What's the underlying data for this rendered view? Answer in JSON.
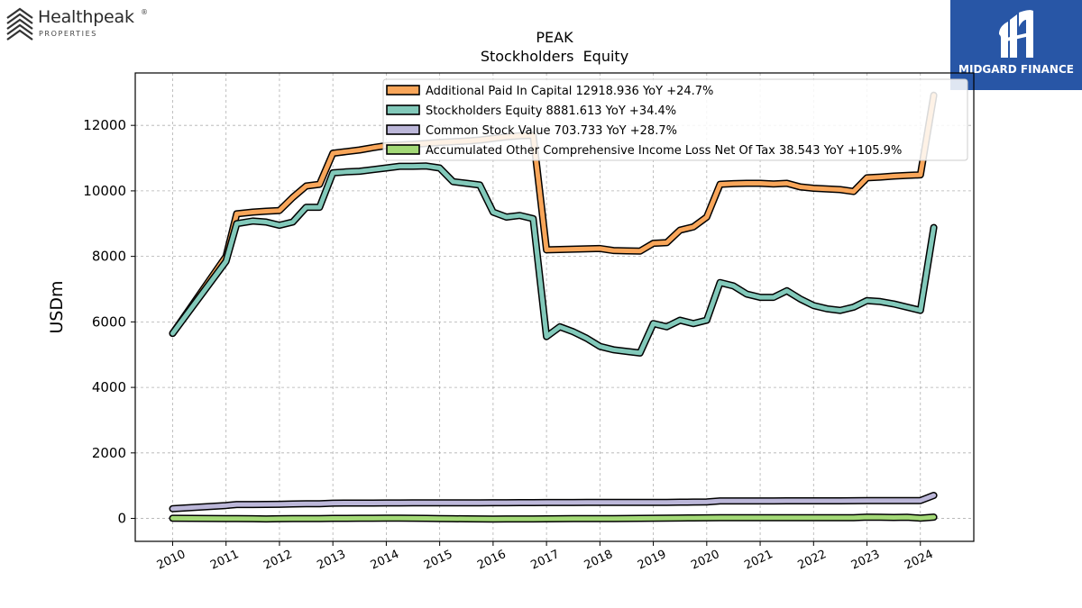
{
  "branding": {
    "left_logo_name": "Healthpeak",
    "left_logo_sub": "PROPERTIES",
    "left_logo_reg": "®",
    "right_logo_name": "MIDGARD FINANCE",
    "right_logo_bg": "#2856a6"
  },
  "chart_data": {
    "type": "line",
    "title": "PEAK",
    "subtitle": "Stockholders  Equity",
    "xlabel": "",
    "ylabel": "USDm",
    "xlim": [
      2009.3,
      2025.0
    ],
    "ylim": [
      -700,
      13600
    ],
    "x_ticks": [
      2010,
      2011,
      2012,
      2013,
      2014,
      2015,
      2016,
      2017,
      2018,
      2019,
      2020,
      2021,
      2022,
      2023,
      2024
    ],
    "x_tick_labels": [
      "2010",
      "2011",
      "2012",
      "2013",
      "2014",
      "2015",
      "2016",
      "2017",
      "2018",
      "2019",
      "2020",
      "2021",
      "2022",
      "2023",
      "2024"
    ],
    "y_ticks": [
      0,
      2000,
      4000,
      6000,
      8000,
      10000,
      12000
    ],
    "y_tick_labels": [
      "0",
      "2000",
      "4000",
      "6000",
      "8000",
      "10000",
      "12000"
    ],
    "grid": true,
    "legend_position": "top-right",
    "series": [
      {
        "name": "Additional Paid In Capital  12918.936 YoY +24.7%",
        "color": "#f9a65a",
        "x": [
          2010.0,
          2011.0,
          2011.2,
          2011.5,
          2011.75,
          2012.0,
          2012.25,
          2012.5,
          2012.75,
          2013.0,
          2013.25,
          2013.5,
          2013.75,
          2014.0,
          2014.25,
          2014.5,
          2014.75,
          2015.0,
          2015.25,
          2015.5,
          2015.75,
          2016.0,
          2016.25,
          2016.5,
          2016.75,
          2017.0,
          2017.25,
          2017.5,
          2017.75,
          2018.0,
          2018.25,
          2018.5,
          2018.75,
          2019.0,
          2019.25,
          2019.5,
          2019.75,
          2020.0,
          2020.25,
          2020.5,
          2020.75,
          2021.0,
          2021.25,
          2021.5,
          2021.75,
          2022.0,
          2022.25,
          2022.5,
          2022.75,
          2023.0,
          2023.25,
          2023.5,
          2023.75,
          2024.0,
          2024.25
        ],
        "values": [
          5650,
          8000,
          9300,
          9350,
          9380,
          9400,
          9800,
          10150,
          10200,
          11150,
          11200,
          11250,
          11320,
          11380,
          11400,
          11420,
          11450,
          11480,
          11500,
          11520,
          11550,
          11600,
          11650,
          11680,
          11700,
          8200,
          8210,
          8220,
          8230,
          8240,
          8180,
          8170,
          8160,
          8400,
          8420,
          8800,
          8900,
          9200,
          10200,
          10220,
          10230,
          10230,
          10210,
          10230,
          10120,
          10080,
          10060,
          10040,
          9980,
          10400,
          10420,
          10450,
          10470,
          10490,
          12918.936
        ]
      },
      {
        "name": "Stockholders Equity  8881.613 YoY +34.4%",
        "color": "#82c9ba",
        "x": [
          2010.0,
          2011.0,
          2011.2,
          2011.5,
          2011.75,
          2012.0,
          2012.25,
          2012.5,
          2012.75,
          2013.0,
          2013.25,
          2013.5,
          2013.75,
          2014.0,
          2014.25,
          2014.5,
          2014.75,
          2015.0,
          2015.25,
          2015.5,
          2015.75,
          2016.0,
          2016.25,
          2016.5,
          2016.75,
          2017.0,
          2017.25,
          2017.5,
          2017.75,
          2018.0,
          2018.25,
          2018.5,
          2018.75,
          2019.0,
          2019.25,
          2019.5,
          2019.75,
          2020.0,
          2020.25,
          2020.5,
          2020.75,
          2021.0,
          2021.25,
          2021.5,
          2021.75,
          2022.0,
          2022.25,
          2022.5,
          2022.75,
          2023.0,
          2023.25,
          2023.5,
          2023.75,
          2024.0,
          2024.25
        ],
        "values": [
          5650,
          7850,
          9000,
          9080,
          9050,
          8950,
          9050,
          9500,
          9500,
          10550,
          10580,
          10600,
          10650,
          10700,
          10750,
          10750,
          10760,
          10700,
          10280,
          10230,
          10180,
          9350,
          9200,
          9250,
          9150,
          5550,
          5850,
          5700,
          5500,
          5250,
          5150,
          5100,
          5050,
          5950,
          5850,
          6050,
          5950,
          6050,
          7200,
          7100,
          6850,
          6750,
          6750,
          6950,
          6700,
          6500,
          6400,
          6350,
          6450,
          6650,
          6620,
          6550,
          6450,
          6350,
          8881.613
        ]
      },
      {
        "name": "Common Stock Value  703.733 YoY +28.7%",
        "color": "#bcb7d9",
        "x": [
          2010.0,
          2011.0,
          2011.2,
          2011.5,
          2011.75,
          2012.0,
          2012.25,
          2012.5,
          2012.75,
          2013.0,
          2013.25,
          2013.5,
          2013.75,
          2014.0,
          2014.25,
          2014.5,
          2014.75,
          2015.0,
          2015.25,
          2015.5,
          2015.75,
          2016.0,
          2016.25,
          2016.5,
          2016.75,
          2017.0,
          2017.25,
          2017.5,
          2017.75,
          2018.0,
          2018.25,
          2018.5,
          2018.75,
          2019.0,
          2019.25,
          2019.5,
          2019.75,
          2020.0,
          2020.25,
          2020.5,
          2020.75,
          2021.0,
          2021.25,
          2021.5,
          2021.75,
          2022.0,
          2022.25,
          2022.5,
          2022.75,
          2023.0,
          2023.25,
          2023.5,
          2023.75,
          2024.0,
          2024.25
        ],
        "values": [
          295,
          395,
          425,
          425,
          428,
          430,
          440,
          450,
          450,
          465,
          468,
          470,
          470,
          472,
          472,
          474,
          474,
          476,
          477,
          478,
          478,
          480,
          481,
          482,
          483,
          484,
          485,
          486,
          487,
          488,
          488,
          489,
          489,
          490,
          492,
          495,
          500,
          505,
          535,
          535,
          535,
          536,
          536,
          537,
          537,
          538,
          538,
          538,
          540,
          545,
          545,
          546,
          546,
          547,
          703.733
        ]
      },
      {
        "name": "Accumulated Other Comprehensive Income Loss Net Of Tax  38.543 YoY +105.9%",
        "color": "#a3d977",
        "x": [
          2010.0,
          2011.0,
          2011.2,
          2011.5,
          2011.75,
          2012.0,
          2012.25,
          2012.5,
          2012.75,
          2013.0,
          2013.25,
          2013.5,
          2013.75,
          2014.0,
          2014.25,
          2014.5,
          2014.75,
          2015.0,
          2015.25,
          2015.5,
          2015.75,
          2016.0,
          2016.25,
          2016.5,
          2016.75,
          2017.0,
          2017.25,
          2017.5,
          2017.75,
          2018.0,
          2018.25,
          2018.5,
          2018.75,
          2019.0,
          2019.25,
          2019.5,
          2019.75,
          2020.0,
          2020.25,
          2020.5,
          2020.75,
          2021.0,
          2021.25,
          2021.5,
          2021.75,
          2022.0,
          2022.25,
          2022.5,
          2022.75,
          2023.0,
          2023.25,
          2023.5,
          2023.75,
          2024.0,
          2024.25
        ],
        "values": [
          5,
          -5,
          -8,
          -10,
          -15,
          -10,
          -8,
          -5,
          -3,
          0,
          2,
          3,
          5,
          8,
          10,
          5,
          0,
          -5,
          -10,
          -12,
          -15,
          -18,
          -16,
          -15,
          -14,
          -12,
          -10,
          -8,
          -6,
          -5,
          -3,
          -2,
          0,
          5,
          10,
          12,
          15,
          18,
          20,
          22,
          22,
          22,
          22,
          22,
          22,
          22,
          22,
          22,
          22,
          40,
          38,
          30,
          35,
          10,
          38.543
        ]
      }
    ]
  }
}
